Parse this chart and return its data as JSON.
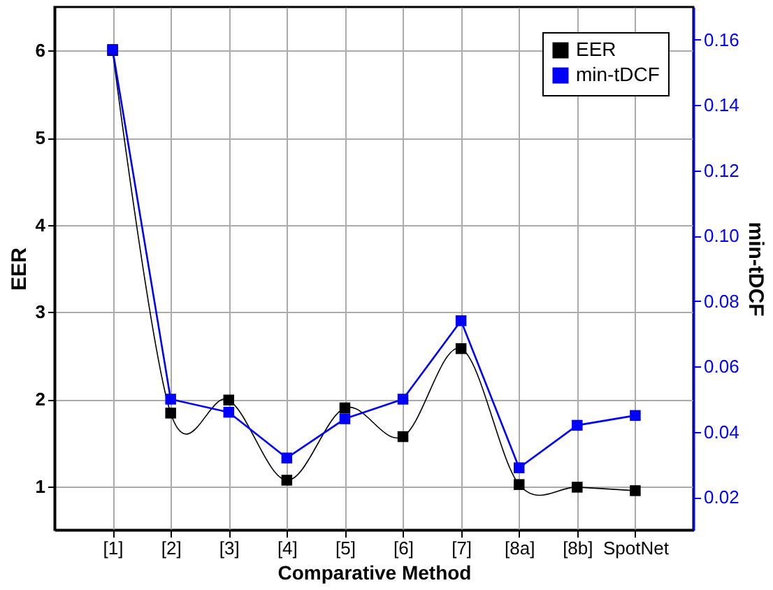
{
  "chart_data": {
    "type": "line",
    "xlabel": "Comparative Method",
    "ylabel": "EER",
    "y2label": "min-tDCF",
    "categories": [
      "[1]",
      "[2]",
      "[3]",
      "[4]",
      "[5]",
      "[6]",
      "[7]",
      "[8a]",
      "[8b]",
      "SpotNet"
    ],
    "series": [
      {
        "name": "EER",
        "color": "#000000",
        "values": [
          6.0,
          1.84,
          1.99,
          1.07,
          1.9,
          1.57,
          2.58,
          1.02,
          0.99,
          0.95
        ]
      },
      {
        "name": "min-tDCF",
        "color": "#0000ff",
        "axis": "y2",
        "values": [
          0.157,
          0.05,
          0.046,
          0.032,
          0.044,
          0.05,
          0.074,
          0.029,
          0.042,
          0.045
        ]
      }
    ],
    "ylim": [
      0.5,
      6.5
    ],
    "yticks": [
      1,
      2,
      3,
      4,
      5,
      6
    ],
    "y2lim": [
      0.01,
      0.17
    ],
    "y2ticks": [
      0.02,
      0.04,
      0.06,
      0.08,
      {
        "value": 0.1,
        "label": "0.10"
      },
      0.12,
      0.14,
      0.16
    ],
    "grid": true,
    "legend": "top right",
    "marker": "square"
  }
}
